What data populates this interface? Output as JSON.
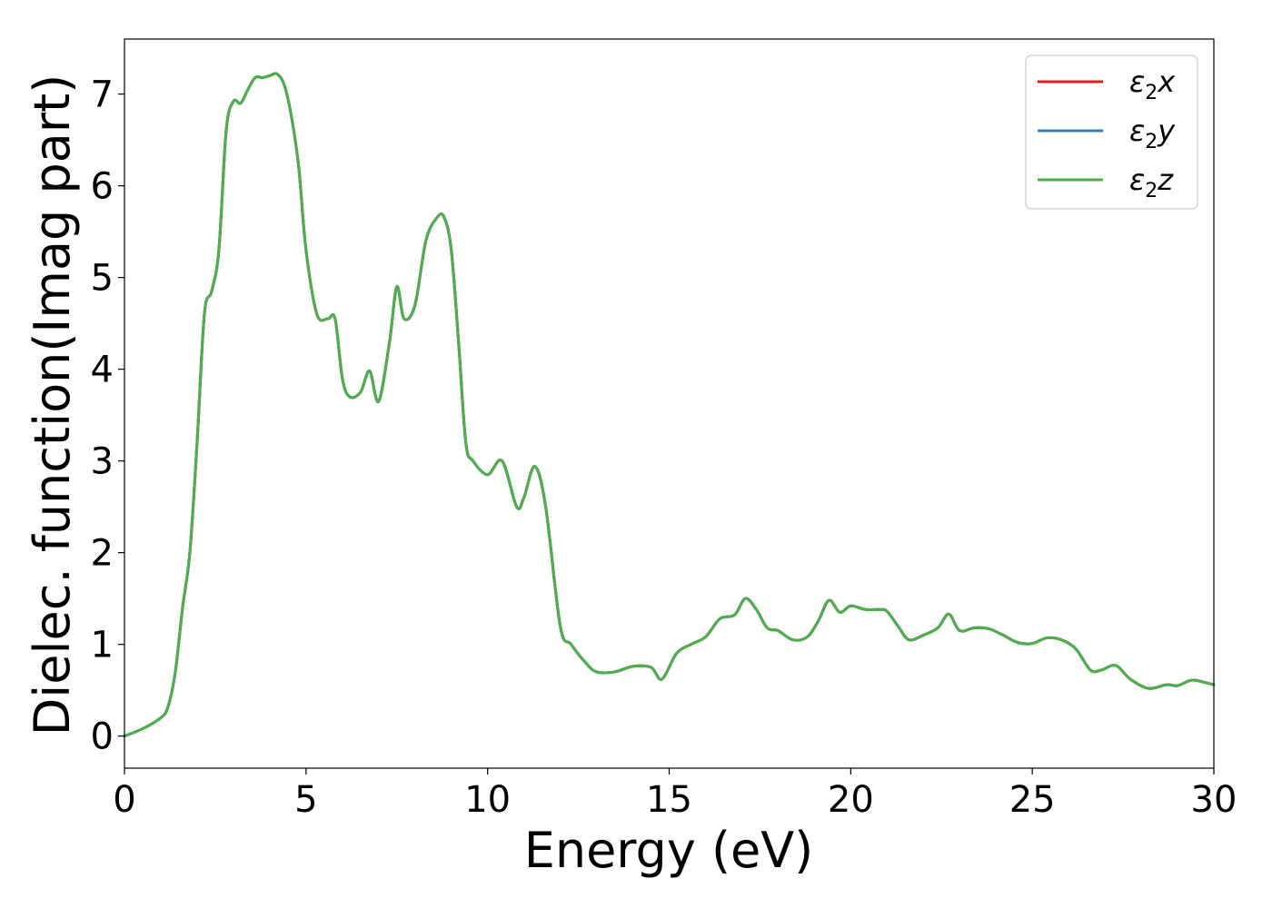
{
  "chart_data": {
    "type": "line",
    "title": "",
    "xlabel": "Energy (eV)",
    "ylabel": "Dielec. function(Imag part)",
    "xlim": [
      0,
      30
    ],
    "ylim": [
      -0.35,
      7.6
    ],
    "xticks": [
      0,
      5,
      10,
      15,
      20,
      25,
      30
    ],
    "yticks": [
      0,
      1,
      2,
      3,
      4,
      5,
      6,
      7
    ],
    "grid": false,
    "legend_position": "top-right",
    "x": [
      0,
      0.5,
      1.0,
      1.2,
      1.4,
      1.6,
      1.8,
      2.0,
      2.2,
      2.4,
      2.6,
      2.8,
      3.0,
      3.2,
      3.4,
      3.6,
      3.8,
      4.0,
      4.2,
      4.4,
      4.6,
      4.8,
      5.0,
      5.3,
      5.6,
      5.8,
      6.0,
      6.2,
      6.5,
      6.75,
      7.0,
      7.3,
      7.5,
      7.7,
      8.0,
      8.3,
      8.6,
      8.8,
      9.0,
      9.2,
      9.4,
      9.6,
      10.0,
      10.4,
      10.8,
      11.0,
      11.3,
      11.6,
      12.0,
      12.3,
      12.7,
      13.0,
      13.5,
      14.0,
      14.5,
      14.8,
      15.2,
      15.6,
      16.0,
      16.4,
      16.8,
      17.1,
      17.4,
      17.7,
      18.0,
      18.4,
      18.8,
      19.1,
      19.4,
      19.7,
      20.0,
      20.4,
      20.8,
      21.0,
      21.3,
      21.6,
      22.0,
      22.4,
      22.7,
      23.0,
      23.4,
      23.8,
      24.2,
      24.6,
      25.0,
      25.4,
      25.8,
      26.2,
      26.6,
      26.9,
      27.3,
      27.7,
      28.2,
      28.7,
      29.0,
      29.4,
      29.8,
      30.0
    ],
    "series": [
      {
        "name": "ε₂x",
        "color": "#e41a1c",
        "values": [
          0.0,
          0.08,
          0.2,
          0.32,
          0.7,
          1.4,
          2.0,
          3.2,
          4.6,
          4.85,
          5.3,
          6.6,
          6.92,
          6.9,
          7.05,
          7.18,
          7.18,
          7.2,
          7.22,
          7.1,
          6.75,
          6.2,
          5.3,
          4.6,
          4.55,
          4.55,
          3.9,
          3.7,
          3.75,
          3.98,
          3.65,
          4.3,
          4.9,
          4.55,
          4.7,
          5.4,
          5.65,
          5.66,
          5.3,
          4.3,
          3.2,
          3.0,
          2.85,
          3.0,
          2.5,
          2.6,
          2.94,
          2.5,
          1.2,
          1.0,
          0.8,
          0.7,
          0.7,
          0.76,
          0.75,
          0.62,
          0.9,
          1.0,
          1.08,
          1.28,
          1.32,
          1.5,
          1.38,
          1.18,
          1.15,
          1.05,
          1.08,
          1.25,
          1.48,
          1.35,
          1.42,
          1.38,
          1.38,
          1.36,
          1.2,
          1.05,
          1.1,
          1.18,
          1.33,
          1.15,
          1.18,
          1.17,
          1.1,
          1.02,
          1.01,
          1.07,
          1.05,
          0.95,
          0.72,
          0.72,
          0.77,
          0.62,
          0.52,
          0.56,
          0.55,
          0.61,
          0.58,
          0.56
        ]
      },
      {
        "name": "ε₂y",
        "color": "#377eb8",
        "values": [
          0.0,
          0.08,
          0.2,
          0.32,
          0.7,
          1.4,
          2.0,
          3.2,
          4.6,
          4.85,
          5.3,
          6.6,
          6.92,
          6.9,
          7.05,
          7.18,
          7.18,
          7.2,
          7.22,
          7.1,
          6.75,
          6.2,
          5.3,
          4.6,
          4.55,
          4.55,
          3.9,
          3.7,
          3.75,
          3.98,
          3.65,
          4.3,
          4.9,
          4.55,
          4.7,
          5.4,
          5.65,
          5.66,
          5.3,
          4.3,
          3.2,
          3.0,
          2.85,
          3.0,
          2.5,
          2.6,
          2.94,
          2.5,
          1.2,
          1.0,
          0.8,
          0.7,
          0.7,
          0.76,
          0.75,
          0.62,
          0.9,
          1.0,
          1.08,
          1.28,
          1.32,
          1.5,
          1.38,
          1.18,
          1.15,
          1.05,
          1.08,
          1.25,
          1.48,
          1.35,
          1.42,
          1.38,
          1.38,
          1.36,
          1.2,
          1.05,
          1.1,
          1.18,
          1.33,
          1.15,
          1.18,
          1.17,
          1.1,
          1.02,
          1.01,
          1.07,
          1.05,
          0.95,
          0.72,
          0.72,
          0.77,
          0.62,
          0.52,
          0.56,
          0.55,
          0.61,
          0.58,
          0.56
        ]
      },
      {
        "name": "ε₂z",
        "color": "#4daf4a",
        "values": [
          0.0,
          0.08,
          0.2,
          0.32,
          0.7,
          1.4,
          2.0,
          3.2,
          4.6,
          4.85,
          5.3,
          6.6,
          6.92,
          6.9,
          7.05,
          7.18,
          7.18,
          7.2,
          7.22,
          7.1,
          6.75,
          6.2,
          5.3,
          4.6,
          4.55,
          4.55,
          3.9,
          3.7,
          3.75,
          3.98,
          3.65,
          4.3,
          4.9,
          4.55,
          4.7,
          5.4,
          5.65,
          5.66,
          5.3,
          4.3,
          3.2,
          3.0,
          2.85,
          3.0,
          2.5,
          2.6,
          2.94,
          2.5,
          1.2,
          1.0,
          0.8,
          0.7,
          0.7,
          0.76,
          0.75,
          0.62,
          0.9,
          1.0,
          1.08,
          1.28,
          1.32,
          1.5,
          1.38,
          1.18,
          1.15,
          1.05,
          1.08,
          1.25,
          1.48,
          1.35,
          1.42,
          1.38,
          1.38,
          1.36,
          1.2,
          1.05,
          1.1,
          1.18,
          1.33,
          1.15,
          1.18,
          1.17,
          1.1,
          1.02,
          1.01,
          1.07,
          1.05,
          0.95,
          0.72,
          0.72,
          0.77,
          0.62,
          0.52,
          0.56,
          0.55,
          0.61,
          0.58,
          0.56
        ]
      }
    ],
    "legend": [
      {
        "base": "ε",
        "sub": "2",
        "comp": "x"
      },
      {
        "base": "ε",
        "sub": "2",
        "comp": "y"
      },
      {
        "base": "ε",
        "sub": "2",
        "comp": "z"
      }
    ]
  }
}
